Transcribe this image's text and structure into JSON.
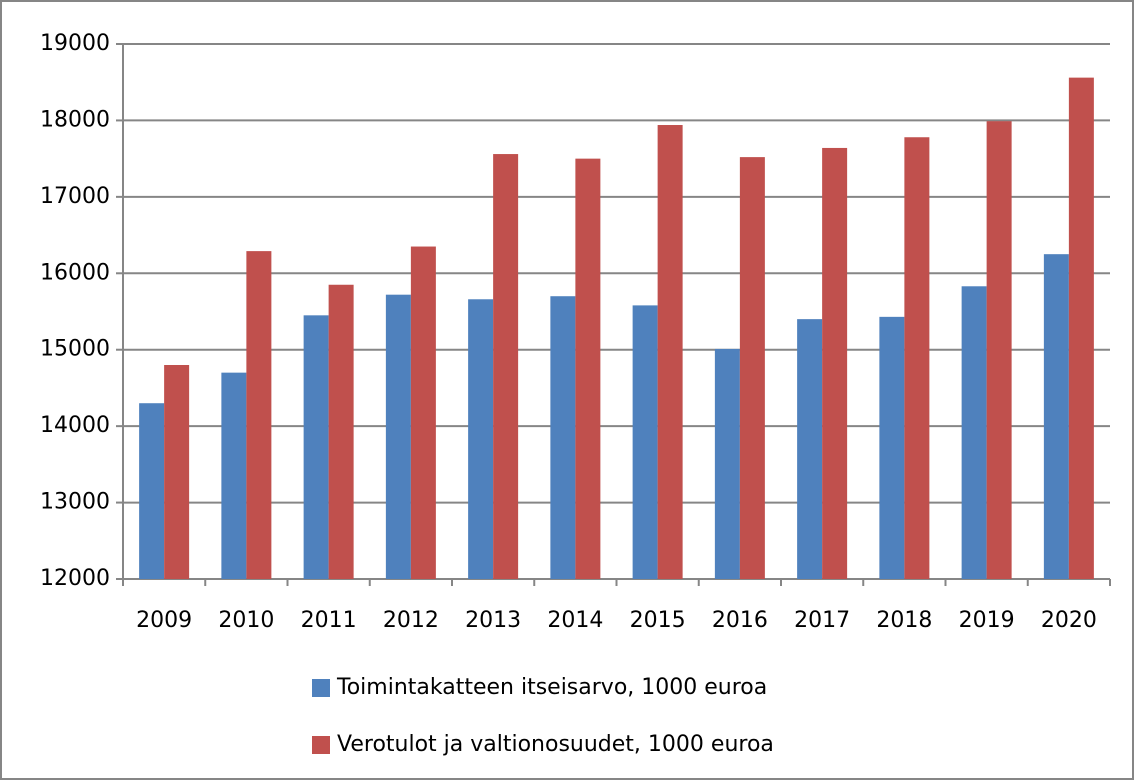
{
  "chart_data": {
    "type": "bar",
    "categories": [
      "2009",
      "2010",
      "2011",
      "2012",
      "2013",
      "2014",
      "2015",
      "2016",
      "2017",
      "2018",
      "2019",
      "2020"
    ],
    "series": [
      {
        "name": "Toimintakatteen itseisarvo, 1000 euroa",
        "color": "#4f81bd",
        "values": [
          14300,
          14700,
          15450,
          15720,
          15660,
          15700,
          15580,
          15010,
          15400,
          15430,
          15830,
          16250
        ]
      },
      {
        "name": "Verotulot ja valtionosuudet, 1000 euroa",
        "color": "#c0504d",
        "values": [
          14800,
          16290,
          15850,
          16350,
          17560,
          17500,
          17940,
          17520,
          17640,
          17780,
          17990,
          18560
        ]
      }
    ],
    "ylim": [
      12000,
      19000
    ],
    "yticks": [
      12000,
      13000,
      14000,
      15000,
      16000,
      17000,
      18000,
      19000
    ],
    "grid": true,
    "legend": "bottom"
  }
}
